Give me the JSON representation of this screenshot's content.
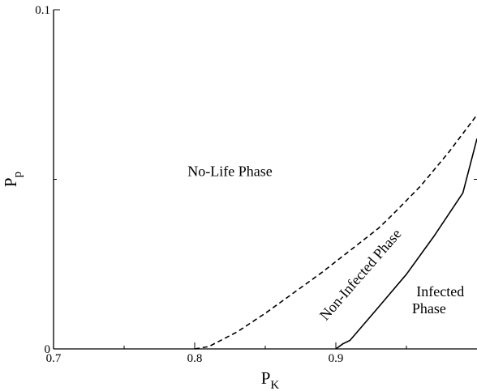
{
  "chart_data": {
    "type": "line",
    "xlabel": "P",
    "xlabel_sub": "K",
    "ylabel": "P",
    "ylabel_sub": "p",
    "xlim": [
      0.7,
      1.0
    ],
    "ylim": [
      0,
      0.1
    ],
    "x_ticks": [
      {
        "value": 0.7,
        "label": "0.7"
      },
      {
        "value": 0.8,
        "label": "0.8"
      },
      {
        "value": 0.9,
        "label": "0.9"
      }
    ],
    "y_ticks": [
      {
        "value": 0,
        "label": "0"
      },
      {
        "value": 0.1,
        "label": "0.1"
      }
    ],
    "series": [
      {
        "style": "dashed",
        "points": [
          [
            0.8,
            0.0
          ],
          [
            0.81,
            0.0007
          ],
          [
            0.83,
            0.005
          ],
          [
            0.85,
            0.0105
          ],
          [
            0.87,
            0.0165
          ],
          [
            0.89,
            0.0225
          ],
          [
            0.91,
            0.029
          ],
          [
            0.93,
            0.0355
          ],
          [
            0.94,
            0.0395
          ],
          [
            0.96,
            0.048
          ],
          [
            0.98,
            0.058
          ],
          [
            1.0,
            0.069
          ]
        ]
      },
      {
        "style": "solid",
        "points": [
          [
            0.9,
            0.0
          ],
          [
            0.905,
            0.0015
          ],
          [
            0.91,
            0.0025
          ],
          [
            0.93,
            0.0122
          ],
          [
            0.95,
            0.022
          ],
          [
            0.97,
            0.0335
          ],
          [
            0.99,
            0.046
          ],
          [
            1.0,
            0.062
          ]
        ]
      }
    ],
    "annotations": [
      {
        "text": "No-Life Phase",
        "x": 0.825,
        "y": 0.051
      },
      {
        "text": "Non-Infected Phase",
        "x": 0.92,
        "y": 0.021,
        "rotate": -49
      },
      {
        "text": "Infected",
        "x": 0.974,
        "y": 0.0155
      },
      {
        "text": "Phase",
        "x": 0.966,
        "y": 0.0105
      }
    ]
  }
}
